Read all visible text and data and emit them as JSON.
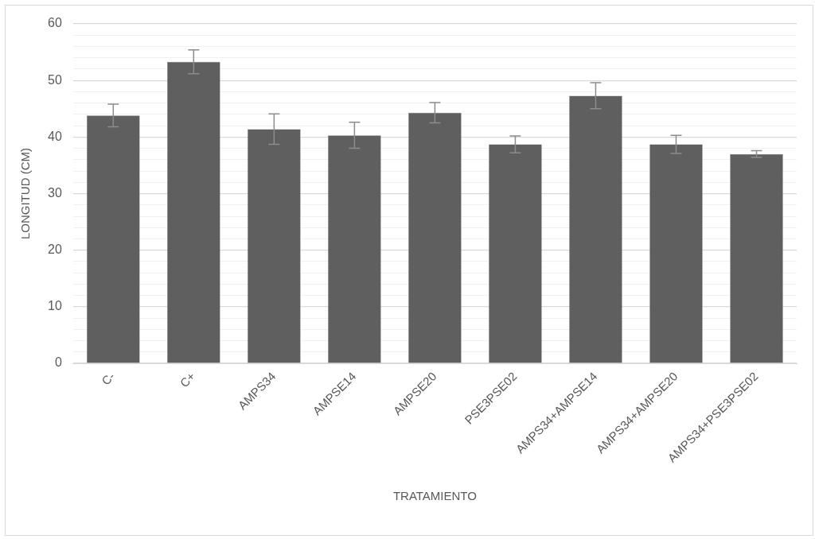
{
  "chart_data": {
    "type": "bar",
    "xlabel": "TRATAMIENTO",
    "ylabel": "LONGITUD (CM)",
    "categories": [
      "C-",
      "C+",
      "AMPS34",
      "AMPSE14",
      "AMPSE20",
      "PSE3PSE02",
      "AMPS34+AMPSE14",
      "AMPS34+AMPSE20",
      "AMPS34+PSE3PSE02"
    ],
    "values": [
      43.8,
      53.3,
      41.4,
      40.3,
      44.3,
      38.7,
      47.3,
      38.7,
      37.0
    ],
    "errors": [
      2.0,
      2.1,
      2.7,
      2.3,
      1.8,
      1.5,
      2.3,
      1.6,
      0.6
    ],
    "color": "#5f5f5f",
    "ylim": [
      0,
      60
    ],
    "yticks": [
      0,
      {
        "value": 2,
        "label": null
      },
      {
        "value": 4,
        "label": null
      },
      {
        "value": 6,
        "label": null
      },
      {
        "value": 8,
        "label": null
      },
      10,
      {
        "value": 12,
        "label": null
      },
      {
        "value": 14,
        "label": null
      },
      {
        "value": 16,
        "label": null
      },
      {
        "value": 18,
        "label": null
      },
      20,
      {
        "value": 22,
        "label": null
      },
      {
        "value": 24,
        "label": null
      },
      {
        "value": 26,
        "label": null
      },
      {
        "value": 28,
        "label": null
      },
      30,
      {
        "value": 32,
        "label": null
      },
      {
        "value": 34,
        "label": null
      },
      {
        "value": 36,
        "label": null
      },
      {
        "value": 38,
        "label": null
      },
      40,
      {
        "value": 42,
        "label": null
      },
      {
        "value": 44,
        "label": null
      },
      {
        "value": 46,
        "label": null
      },
      {
        "value": 48,
        "label": null
      },
      50,
      {
        "value": 52,
        "label": null
      },
      {
        "value": 54,
        "label": null
      },
      {
        "value": 56,
        "label": null
      },
      {
        "value": 58,
        "label": null
      },
      60
    ],
    "grid": "y",
    "legend": false
  }
}
